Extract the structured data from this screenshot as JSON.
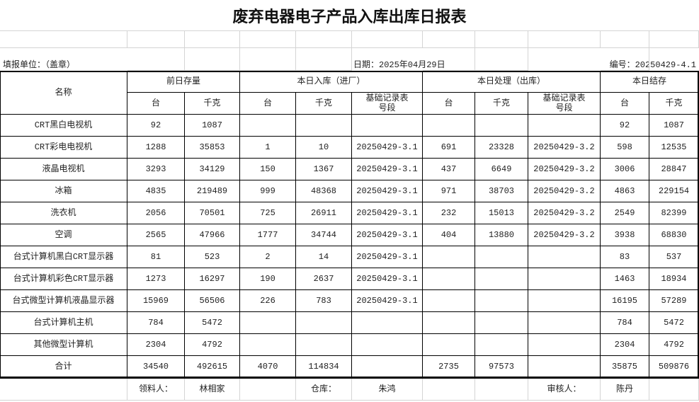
{
  "title": "废弃电器电子产品入库出库日报表",
  "info": {
    "unit_label": "填报单位：（盖章）",
    "date_label": "日期：2025年04月29日",
    "number_label": "编号：20250429-4.1"
  },
  "header": {
    "name": "名称",
    "groups": [
      "前日存量",
      "本日入库（进厂）",
      "本日处理（出库）",
      "本日结存"
    ],
    "sub": [
      "台",
      "千克",
      "台",
      "千克",
      "基础记录表\n号段",
      "台",
      "千克",
      "基础记录表\n号段",
      "台",
      "千克"
    ]
  },
  "rows": [
    {
      "name": "CRT黑白电视机",
      "values": [
        "92",
        "1087",
        "",
        "",
        "",
        "",
        "",
        "",
        "92",
        "1087"
      ]
    },
    {
      "name": "CRT彩电电视机",
      "values": [
        "1288",
        "35853",
        "1",
        "10",
        "20250429-3.1",
        "691",
        "23328",
        "20250429-3.2",
        "598",
        "12535"
      ]
    },
    {
      "name": "液晶电视机",
      "values": [
        "3293",
        "34129",
        "150",
        "1367",
        "20250429-3.1",
        "437",
        "6649",
        "20250429-3.2",
        "3006",
        "28847"
      ]
    },
    {
      "name": "冰箱",
      "values": [
        "4835",
        "219489",
        "999",
        "48368",
        "20250429-3.1",
        "971",
        "38703",
        "20250429-3.2",
        "4863",
        "229154"
      ]
    },
    {
      "name": "洗衣机",
      "values": [
        "2056",
        "70501",
        "725",
        "26911",
        "20250429-3.1",
        "232",
        "15013",
        "20250429-3.2",
        "2549",
        "82399"
      ]
    },
    {
      "name": "空调",
      "values": [
        "2565",
        "47966",
        "1777",
        "34744",
        "20250429-3.1",
        "404",
        "13880",
        "20250429-3.2",
        "3938",
        "68830"
      ]
    },
    {
      "name": "台式计算机黑白CRT显示器",
      "values": [
        "81",
        "523",
        "2",
        "14",
        "20250429-3.1",
        "",
        "",
        "",
        "83",
        "537"
      ]
    },
    {
      "name": "台式计算机彩色CRT显示器",
      "values": [
        "1273",
        "16297",
        "190",
        "2637",
        "20250429-3.1",
        "",
        "",
        "",
        "1463",
        "18934"
      ]
    },
    {
      "name": "台式微型计算机液晶显示器",
      "values": [
        "15969",
        "56506",
        "226",
        "783",
        "20250429-3.1",
        "",
        "",
        "",
        "16195",
        "57289"
      ]
    },
    {
      "name": "台式计算机主机",
      "values": [
        "784",
        "5472",
        "",
        "",
        "",
        "",
        "",
        "",
        "784",
        "5472"
      ]
    },
    {
      "name": "其他微型计算机",
      "values": [
        "2304",
        "4792",
        "",
        "",
        "",
        "",
        "",
        "",
        "2304",
        "4792"
      ]
    },
    {
      "name": "合计",
      "values": [
        "34540",
        "492615",
        "4070",
        "114834",
        "",
        "2735",
        "97573",
        "",
        "35875",
        "509876"
      ]
    }
  ],
  "footer": {
    "receiver_label": "领料人：",
    "receiver": "林相家",
    "warehouse_label": "仓库：",
    "warehouse": "朱鸿",
    "reviewer_label": "审核人：",
    "reviewer": "陈丹"
  }
}
